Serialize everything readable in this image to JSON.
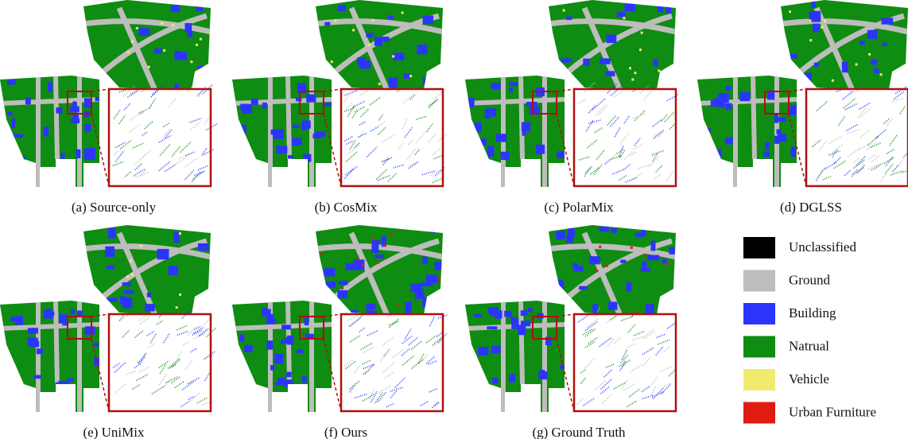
{
  "panels": [
    {
      "caption": "(a) Source-only"
    },
    {
      "caption": "(b) CosMix"
    },
    {
      "caption": "(c) PolarMix"
    },
    {
      "caption": "(d) DGLSS"
    },
    {
      "caption": "(e) UniMix"
    },
    {
      "caption": "(f) Ours"
    },
    {
      "caption": "(g) Ground Truth"
    }
  ],
  "legend": [
    {
      "label": "Unclassified",
      "color": "#000000"
    },
    {
      "label": "Ground",
      "color": "#bdbdbb"
    },
    {
      "label": "Building",
      "color": "#2b35fa"
    },
    {
      "label": "Natrual",
      "color": "#0f8c12"
    },
    {
      "label": "Vehicle",
      "color": "#f2ea6e"
    },
    {
      "label": "Urban Furniture",
      "color": "#e01b10"
    }
  ]
}
